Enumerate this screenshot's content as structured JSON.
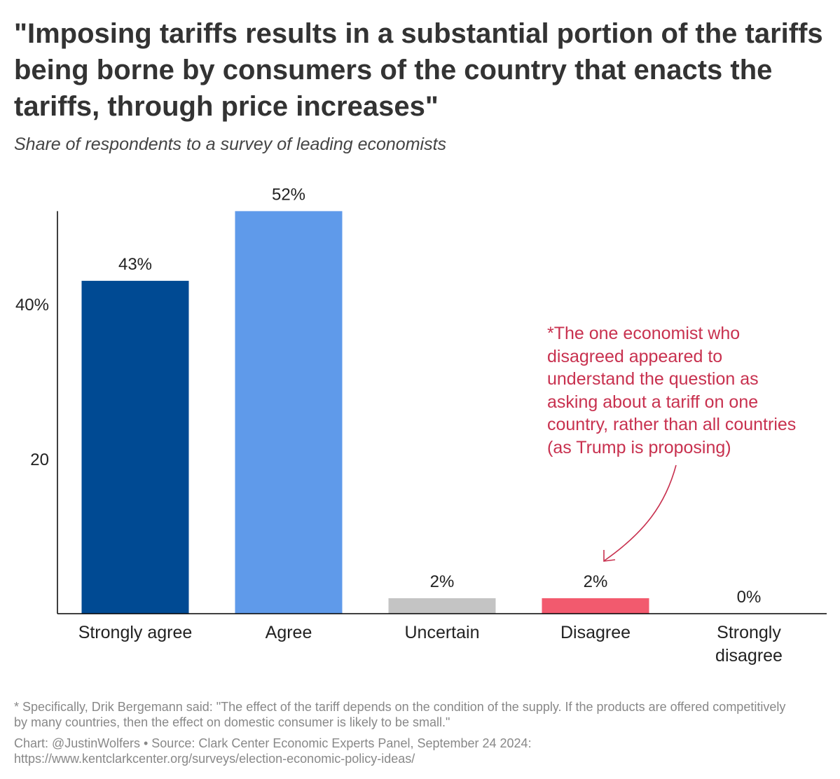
{
  "title": "\"Imposing tariffs results in a substantial portion of the tariffs being borne by consumers of the country that enacts the tariffs, through price increases\"",
  "subtitle": "Share of respondents to a survey of leading economists",
  "annotation": "*The one economist who\ndisagreed appeared to\nunderstand the question as\nasking about a tariff on one\ncountry, rather than all countries\n(as Trump is proposing)",
  "footnote": "* Specifically, Drik Bergemann said: \"The effect of the tariff depends on the condition of the supply. If the products are offered competitively by many countries, then the effect on domestic consumer is likely to be small.\"",
  "credit_line1": "Chart: @JustinWolfers • Source: Clark Center Economic Experts Panel, September 24 2024:",
  "credit_line2": "https://www.kentclarkcenter.org/surveys/election-economic-policy-ideas/",
  "chart_data": {
    "type": "bar",
    "categories": [
      "Strongly agree",
      "Agree",
      "Uncertain",
      "Disagree",
      "Strongly disagree"
    ],
    "values": [
      43,
      52,
      2,
      2,
      0
    ],
    "data_labels": [
      "43%",
      "52%",
      "2%",
      "2%",
      "0%"
    ],
    "colors": [
      "#004a93",
      "#5f9aea",
      "#c4c4c4",
      "#f25a6e",
      "#f25a6e"
    ],
    "yticks": [
      {
        "value": 20,
        "label": "20"
      },
      {
        "value": 40,
        "label": "40%"
      }
    ],
    "ylim": [
      0,
      52
    ],
    "grid": false,
    "annotation_color": "#c8314f"
  }
}
